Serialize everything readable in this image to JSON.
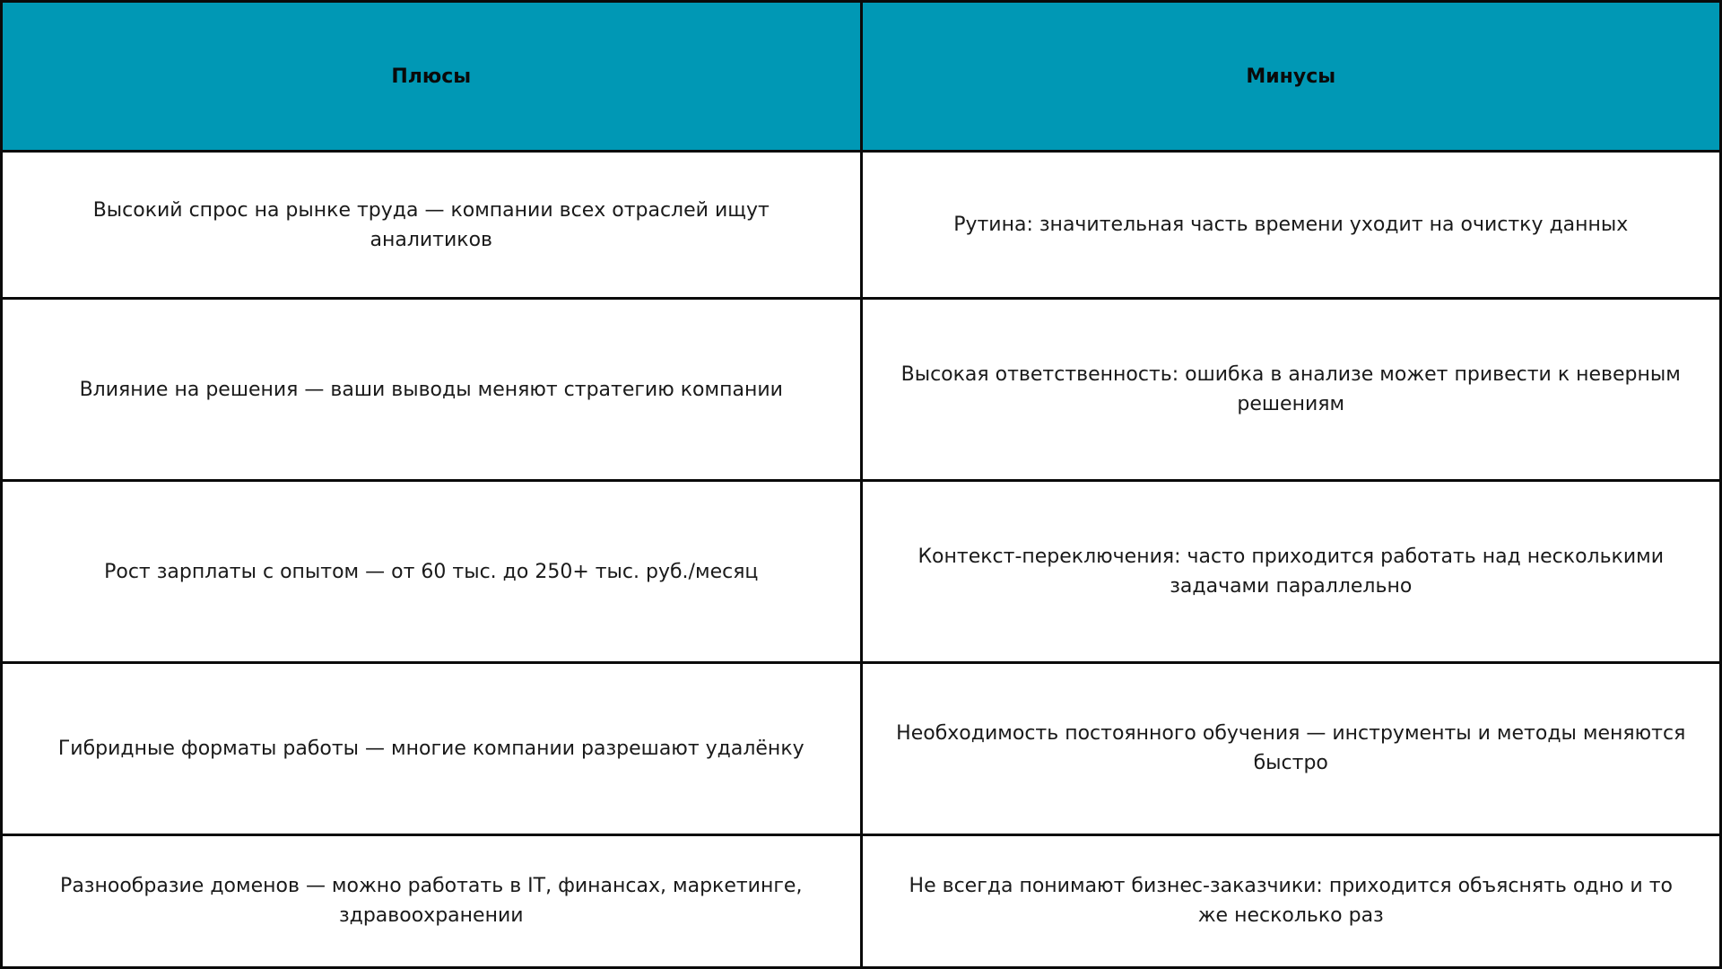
{
  "table": {
    "header_color": "#0098b5",
    "headers": [
      "Плюсы",
      "Минусы"
    ],
    "rows": [
      [
        "Высокий спрос на рынке труда — компании всех отраслей ищут аналитиков",
        "Рутина: значительная часть времени уходит на очистку данных"
      ],
      [
        "Влияние на решения — ваши выводы меняют стратегию компании",
        "Высокая ответственность: ошибка в анализе может привести к неверным решениям"
      ],
      [
        "Рост зарплаты с опытом — от 60 тыс. до 250+ тыс. руб./месяц",
        "Контекст-переключения: часто приходится работать над несколькими задачами параллельно"
      ],
      [
        "Гибридные форматы работы — многие компании разрешают удалёнку",
        "Необходимость постоянного обучения — инструменты и методы меняются быстро"
      ],
      [
        "Разнообразие доменов — можно работать в IT, финансах, маркетинге, здравоохранении",
        "Не всегда понимают бизнес-заказчики: приходится объяснять одно и то же несколько раз"
      ]
    ]
  }
}
